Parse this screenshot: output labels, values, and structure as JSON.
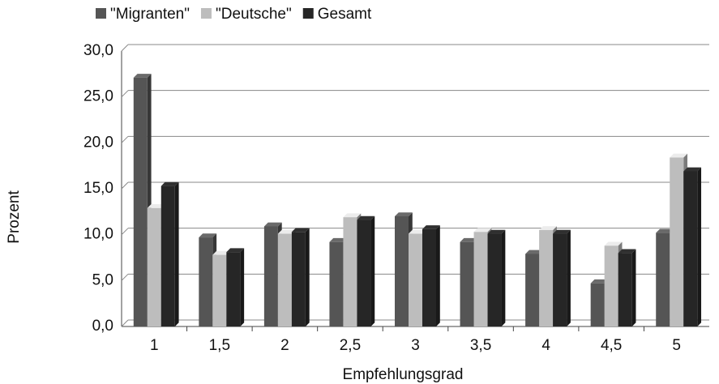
{
  "chart_data": {
    "type": "bar",
    "x_label": "Empfehlungsgrad",
    "y_label": "Prozent",
    "categories": [
      "1",
      "1,5",
      "2",
      "2,5",
      "3",
      "3,5",
      "4",
      "4,5",
      "5"
    ],
    "series": [
      {
        "name": "\"Migranten\"",
        "color": "#555555",
        "values": [
          27.1,
          9.7,
          10.9,
          9.2,
          12.0,
          9.2,
          7.9,
          4.7,
          10.2
        ]
      },
      {
        "name": "\"Deutsche\"",
        "color": "#bdbdbd",
        "values": [
          12.9,
          7.8,
          10.1,
          11.9,
          10.1,
          10.3,
          10.5,
          8.8,
          18.4
        ]
      },
      {
        "name": "Gesamt",
        "color": "#262626",
        "values": [
          15.3,
          8.1,
          10.3,
          11.6,
          10.6,
          10.1,
          10.1,
          8.0,
          16.9
        ]
      }
    ],
    "ylim": [
      0,
      30
    ],
    "yticks": [
      {
        "value": 0,
        "label": "0,0"
      },
      {
        "value": 5,
        "label": "5,0"
      },
      {
        "value": 10,
        "label": "10,0"
      },
      {
        "value": 15,
        "label": "15,0"
      },
      {
        "value": 20,
        "label": "20,0"
      },
      {
        "value": 25,
        "label": "25,0"
      },
      {
        "value": 30,
        "label": "30,0"
      }
    ],
    "grid": true,
    "legend": "top"
  }
}
